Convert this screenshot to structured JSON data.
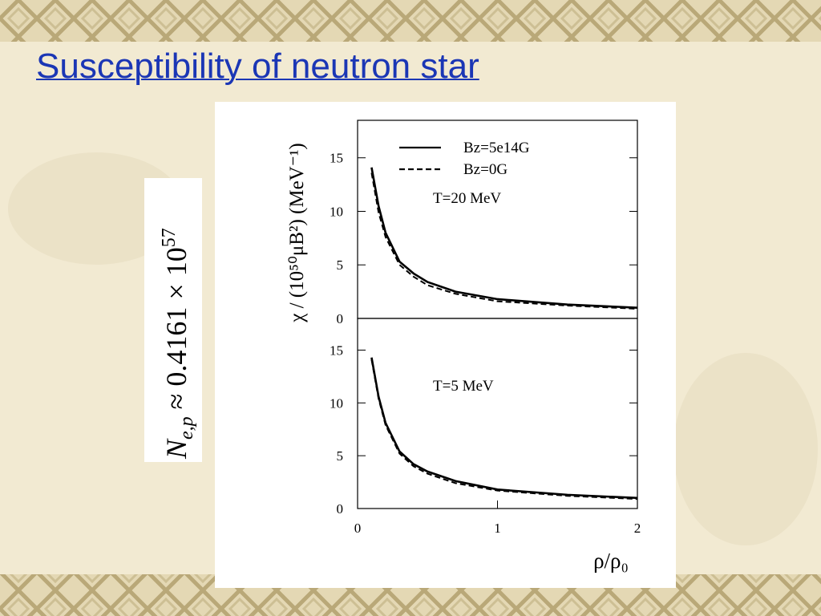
{
  "slide": {
    "title": "Susceptibility of neutron star",
    "formula": {
      "symbol": "N",
      "subscript": "e,p",
      "relation": " ≈ 0.4161 × 10",
      "exponent": "57"
    }
  },
  "chart_data": [
    {
      "type": "line",
      "y_label": "χ / (10⁵⁰μB²) (MeV⁻¹)",
      "annotation": "T=20 MeV",
      "x": [
        0.1,
        0.15,
        0.2,
        0.3,
        0.4,
        0.5,
        0.7,
        1.0,
        1.5,
        2.0
      ],
      "series": [
        {
          "name": "Bz=5e14G",
          "color": "#000000",
          "line_style": "solid",
          "values": [
            14.1,
            10.5,
            8.0,
            5.3,
            4.2,
            3.4,
            2.5,
            1.8,
            1.3,
            1.0
          ]
        },
        {
          "name": "Bz=0G",
          "color": "#000000",
          "line_style": "dashed",
          "values": [
            13.6,
            9.9,
            7.6,
            5.0,
            3.9,
            3.1,
            2.3,
            1.6,
            1.2,
            0.9
          ]
        }
      ],
      "xlim": [
        0,
        2
      ],
      "ylim": [
        0,
        18.5
      ],
      "yticks": [
        0,
        5,
        10,
        15
      ]
    },
    {
      "type": "line",
      "annotation": "T=5 MeV",
      "x_label": "ρ/ρ₀",
      "x": [
        0.1,
        0.15,
        0.2,
        0.3,
        0.4,
        0.5,
        0.7,
        1.0,
        1.5,
        2.0
      ],
      "series": [
        {
          "color": "#000000",
          "line_style": "solid",
          "values": [
            14.3,
            10.6,
            8.1,
            5.4,
            4.2,
            3.5,
            2.6,
            1.8,
            1.3,
            1.0
          ]
        },
        {
          "color": "#000000",
          "line_style": "dashed",
          "values": [
            14.1,
            10.4,
            7.9,
            5.2,
            4.0,
            3.3,
            2.4,
            1.7,
            1.2,
            0.9
          ]
        }
      ],
      "xlim": [
        0,
        2
      ],
      "ylim": [
        0,
        18
      ],
      "yticks": [
        0,
        5,
        10,
        15
      ],
      "xticks": [
        0,
        1,
        2
      ]
    }
  ]
}
